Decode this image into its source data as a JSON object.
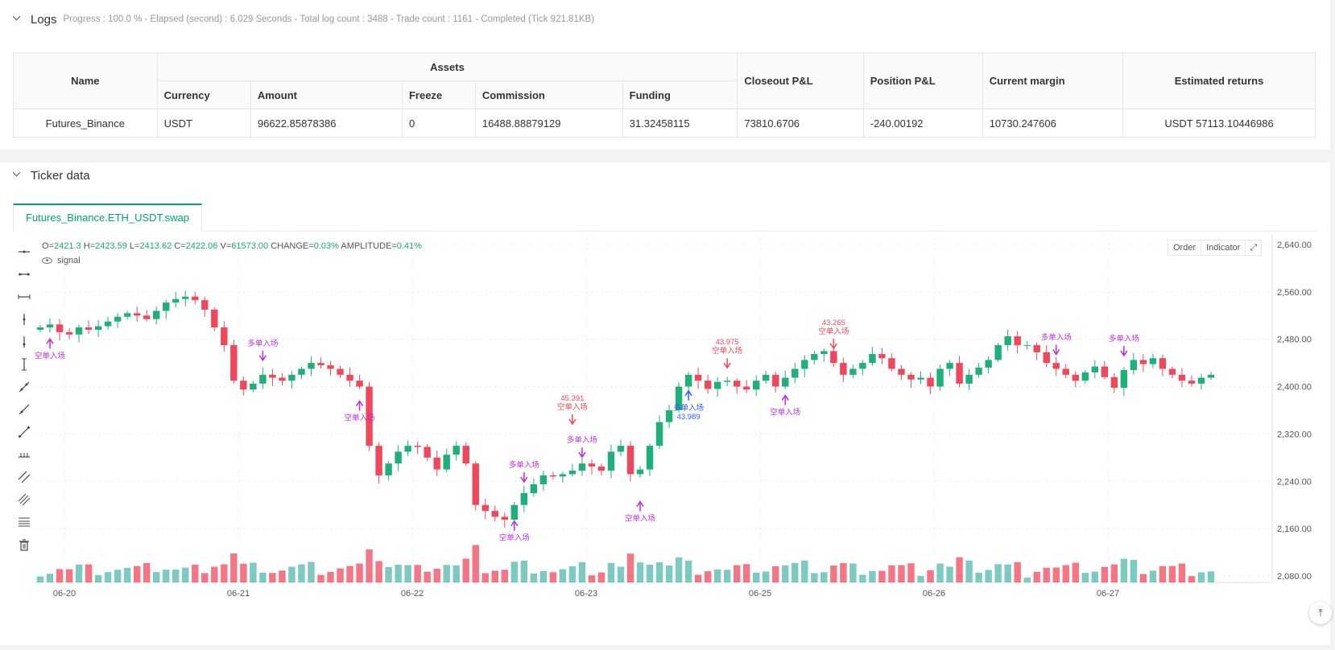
{
  "logs": {
    "title": "Logs",
    "status": "Progress : 100.0 % - Elapsed (second) : 6.029  Seconds - Total log count : 3488 - Trade count : 1161 - Completed (Tick 921.81KB)"
  },
  "assets_table": {
    "col_name": "Name",
    "col_assets": "Assets",
    "sub_currency": "Currency",
    "sub_amount": "Amount",
    "sub_freeze": "Freeze",
    "sub_commission": "Commission",
    "sub_funding": "Funding",
    "col_closeout": "Closeout P&L",
    "col_position": "Position P&L",
    "col_margin": "Current margin",
    "col_returns": "Estimated returns",
    "row": {
      "name": "Futures_Binance",
      "currency": "USDT",
      "amount": "96622.85878386",
      "freeze": "0",
      "commission": "16488.88879129",
      "funding": "31.32458115",
      "closeout": "73810.6706",
      "position": "-240.00192",
      "margin": "10730.247606",
      "returns": "USDT 57113.10446986"
    }
  },
  "ticker": {
    "title": "Ticker data",
    "tab": "Futures_Binance.ETH_USDT.swap",
    "ohlc": {
      "o_label": "O=",
      "o": "2421.3",
      "h_label": "H=",
      "h": "2423.59",
      "l_label": "L=",
      "l": "2413.62",
      "c_label": "C=",
      "c": "2422.06",
      "v_label": "V=",
      "v": "61573.00",
      "chg_label": "CHANGE=",
      "chg": "0.03%",
      "amp_label": "AMPLITUDE=",
      "amp": "0.41%"
    },
    "signal_label": "signal",
    "btn_order": "Order",
    "btn_indicator": "Indicator"
  },
  "chart_data": {
    "type": "candlestick",
    "y_ticks": [
      "2,640.00",
      "2,560.00",
      "2,480.00",
      "2,400.00",
      "2,320.00",
      "2,240.00",
      "2,160.00",
      "2,080.00"
    ],
    "y_values": [
      2640,
      2560,
      2480,
      2400,
      2320,
      2240,
      2160,
      2080
    ],
    "x_ticks": [
      "06-20",
      "06-21",
      "06-22",
      "06-23",
      "06-25",
      "06-26",
      "06-27"
    ],
    "closes": [
      2500,
      2505,
      2492,
      2488,
      2500,
      2496,
      2502,
      2510,
      2518,
      2524,
      2520,
      2514,
      2528,
      2542,
      2548,
      2552,
      2546,
      2530,
      2500,
      2470,
      2410,
      2395,
      2405,
      2420,
      2415,
      2410,
      2420,
      2430,
      2440,
      2436,
      2430,
      2420,
      2410,
      2400,
      2300,
      2250,
      2270,
      2290,
      2300,
      2298,
      2280,
      2260,
      2285,
      2300,
      2270,
      2200,
      2190,
      2180,
      2175,
      2200,
      2220,
      2235,
      2250,
      2248,
      2252,
      2258,
      2270,
      2265,
      2258,
      2290,
      2300,
      2252,
      2260,
      2300,
      2340,
      2360,
      2400,
      2420,
      2410,
      2396,
      2408,
      2410,
      2400,
      2395,
      2410,
      2420,
      2400,
      2415,
      2430,
      2445,
      2455,
      2460,
      2440,
      2420,
      2430,
      2440,
      2455,
      2448,
      2430,
      2420,
      2412,
      2415,
      2400,
      2430,
      2440,
      2405,
      2420,
      2432,
      2445,
      2470,
      2485,
      2470,
      2470,
      2458,
      2440,
      2430,
      2420,
      2410,
      2424,
      2434,
      2416,
      2398,
      2428,
      2445,
      2438,
      2448,
      2430,
      2420,
      2410,
      2405,
      2415,
      2420
    ],
    "trade_labels": [
      "空单入场",
      "多单入场",
      "空单入场",
      "空单入场",
      "多单入场",
      "多单入场",
      "空单入场",
      "多单入场",
      "空单入场",
      "空单入场",
      "空单入场",
      "空单入场",
      "多单入场",
      "多单入场"
    ],
    "trade_values": [
      "45.391",
      "43.989",
      "43.975",
      "43.265"
    ]
  }
}
